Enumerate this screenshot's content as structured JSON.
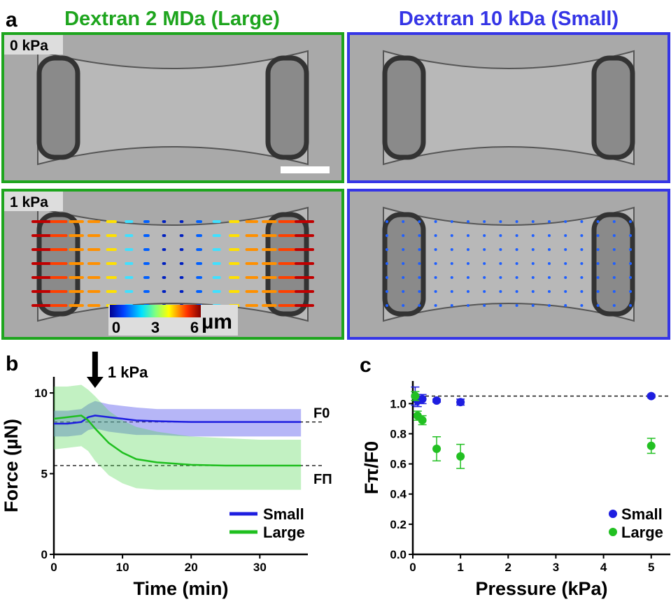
{
  "panel_a": {
    "label": "a",
    "columns": [
      {
        "title": "Dextran 2 MDa (Large)",
        "color": "#1ea51e"
      },
      {
        "title": "Dextran 10 kDa (Small)",
        "color": "#3535e6"
      }
    ],
    "rows": [
      "0 kPa",
      "1 kPa"
    ],
    "colorbar": {
      "ticks": [
        "0",
        "3",
        "6"
      ],
      "unit": "µm"
    }
  },
  "chart_data": [
    {
      "type": "line",
      "label": "b",
      "xlabel": "Time (min)",
      "ylabel": "Force (µN)",
      "xlim": [
        0,
        37
      ],
      "ylim": [
        0,
        11
      ],
      "xticks": [
        0,
        10,
        20,
        30
      ],
      "yticks": [
        0,
        5,
        10
      ],
      "legend": "lower right",
      "x": [
        0,
        2,
        4,
        5,
        6,
        8,
        10,
        12,
        15,
        20,
        25,
        30,
        36
      ],
      "series": [
        {
          "name": "Small",
          "color": "#1e1ee0",
          "band_color": "rgba(110,110,240,0.5)",
          "values": [
            8.1,
            8.1,
            8.2,
            8.5,
            8.6,
            8.5,
            8.4,
            8.3,
            8.25,
            8.2,
            8.2,
            8.2,
            8.2
          ],
          "upper": [
            8.9,
            8.9,
            9.0,
            9.3,
            9.5,
            9.3,
            9.2,
            9.1,
            9.0,
            9.0,
            9.0,
            9.0,
            9.0
          ],
          "lower": [
            7.3,
            7.3,
            7.4,
            7.7,
            7.8,
            7.6,
            7.5,
            7.4,
            7.4,
            7.3,
            7.3,
            7.3,
            7.3
          ]
        },
        {
          "name": "Large",
          "color": "#1fbf1f",
          "band_color": "rgba(80,215,80,0.35)",
          "values": [
            8.4,
            8.5,
            8.6,
            8.3,
            7.8,
            6.9,
            6.3,
            5.9,
            5.7,
            5.55,
            5.5,
            5.5,
            5.5
          ],
          "upper": [
            10.4,
            10.4,
            10.5,
            10.2,
            9.8,
            8.9,
            8.3,
            7.9,
            7.6,
            7.3,
            7.2,
            7.1,
            7.1
          ],
          "lower": [
            6.5,
            6.6,
            6.7,
            6.4,
            5.8,
            4.9,
            4.4,
            4.1,
            4.0,
            4.0,
            4.0,
            4.0,
            4.0
          ]
        }
      ],
      "reference_lines": [
        {
          "value": 8.2,
          "label": "F0"
        },
        {
          "value": 5.5,
          "label": "FΠ"
        }
      ],
      "annotation": {
        "text": "1 kPa",
        "x": 6
      }
    },
    {
      "type": "scatter",
      "label": "c",
      "xlabel": "Pressure (kPa)",
      "ylabel": "Fπ/F0",
      "xlim": [
        0,
        5.4
      ],
      "ylim": [
        0,
        1.15
      ],
      "xticks": [
        0,
        1,
        2,
        3,
        4,
        5
      ],
      "yticks": [
        {
          "value": 0,
          "label": "0.0"
        },
        {
          "value": 0.2,
          "label": "0.2"
        },
        {
          "value": 0.4,
          "label": "0.4"
        },
        {
          "value": 0.6,
          "label": "0.6"
        },
        {
          "value": 0.8,
          "label": "0.8"
        },
        {
          "value": 1,
          "label": "1.0"
        }
      ],
      "legend": "lower right",
      "series": [
        {
          "name": "Small",
          "color": "#1e1ee0",
          "x": [
            0.05,
            0.1,
            0.2,
            0.5,
            1,
            5
          ],
          "values": [
            1.05,
            1.02,
            1.03,
            1.02,
            1.01,
            1.05
          ],
          "errors": [
            0.06,
            0.04,
            0.03,
            0.01,
            0.02,
            0.01
          ]
        },
        {
          "name": "Large",
          "color": "#22c022",
          "x": [
            0.05,
            0.1,
            0.2,
            0.5,
            1,
            5
          ],
          "values": [
            1.05,
            0.92,
            0.89,
            0.7,
            0.65,
            0.72
          ],
          "errors": [
            0.03,
            0.03,
            0.03,
            0.08,
            0.08,
            0.05
          ]
        }
      ],
      "reference_lines": [
        {
          "value": 1.05
        }
      ]
    }
  ]
}
